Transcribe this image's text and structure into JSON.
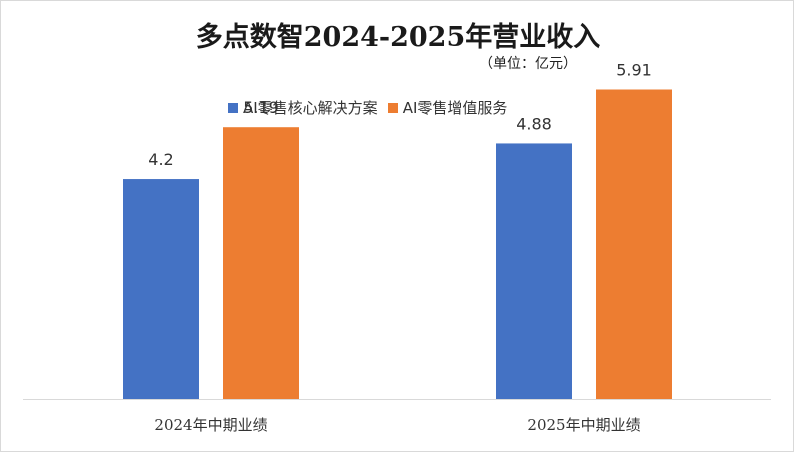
{
  "chart_data": {
    "type": "bar",
    "title": "多点数智2024-2025年营业收入",
    "subtitle": "（单位：亿元）",
    "categories": [
      "2024年中期业绩",
      "2025年中期业绩"
    ],
    "series": [
      {
        "name": "AI零售核心解决方案",
        "color": "#4472C4",
        "values": [
          4.2,
          4.88
        ]
      },
      {
        "name": "AI零售增值服务",
        "color": "#ED7D31",
        "values": [
          5.19,
          5.91
        ]
      }
    ],
    "ylim": [
      0,
      7.6
    ],
    "grid": false,
    "legend_position": "top"
  }
}
